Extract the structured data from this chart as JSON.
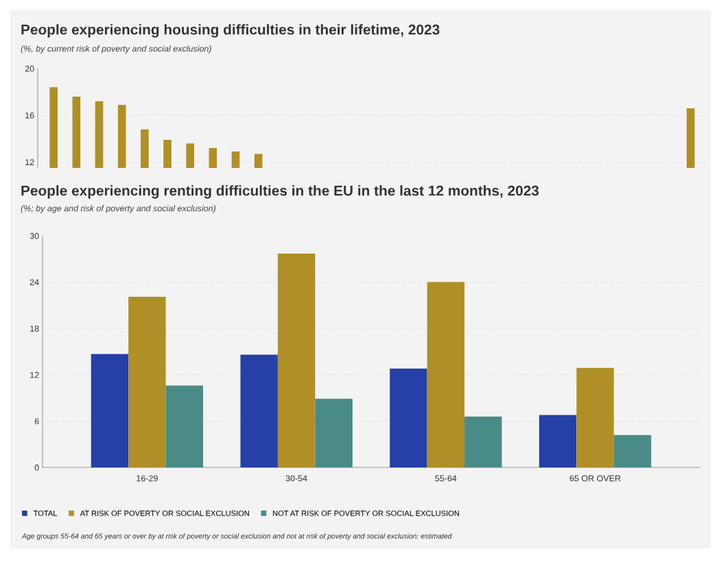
{
  "chart_data": [
    {
      "type": "bar",
      "title": "People experiencing housing difficulties in their lifetime, 2023",
      "subtitle": "(%, by current risk of poverty and social exclusion)",
      "categories": [
        null,
        null,
        null,
        null,
        null,
        null,
        null,
        null,
        null,
        null,
        null,
        null,
        null,
        null,
        null,
        null,
        null,
        null,
        null,
        null,
        null,
        null,
        null,
        null,
        null,
        null,
        null,
        null,
        null
      ],
      "series": [
        {
          "color": "#b08f26",
          "values": [
            18.4,
            17.6,
            17.2,
            16.9,
            14.8,
            13.9,
            13.6,
            13.2,
            12.9,
            12.7,
            null,
            null,
            null,
            null,
            null,
            null,
            null,
            null,
            null,
            null,
            null,
            null,
            null,
            null,
            null,
            null,
            null,
            null,
            16.6
          ]
        }
      ],
      "ylim": [
        11.5,
        20
      ],
      "yticks": [
        12,
        16,
        20
      ],
      "grid": "y",
      "tick_labels": "y"
    },
    {
      "type": "bar",
      "title": "People experiencing renting difficulties in the EU in the last 12 months, 2023",
      "subtitle": "(%; by age and risk of poverty and social exclusion)",
      "categories": [
        "16-29",
        "30-54",
        "55-64",
        "65 OR OVER"
      ],
      "series": [
        {
          "name": "TOTAL",
          "color": "#2541a8",
          "values": [
            14.7,
            14.6,
            12.8,
            6.8
          ]
        },
        {
          "name": "AT RISK OF POVERTY OR SOCIAL EXCLUSION",
          "color": "#b08f26",
          "values": [
            22.1,
            27.7,
            24.0,
            12.9
          ]
        },
        {
          "name": "NOT AT RISK OF POVERTY OR SOCIAL EXCLUSION",
          "color": "#4a8a87",
          "values": [
            10.6,
            8.9,
            6.6,
            4.2
          ]
        }
      ],
      "ylim": [
        0,
        30
      ],
      "yticks": [
        0,
        6,
        12,
        18,
        24,
        30
      ],
      "grid": "y",
      "legend": "bottom",
      "annotations": [
        "Age groups 55-64 and 65 years or over by at risk of poverty or social exclusion and not at risk of poverty and social exclusion: estimated"
      ]
    }
  ]
}
